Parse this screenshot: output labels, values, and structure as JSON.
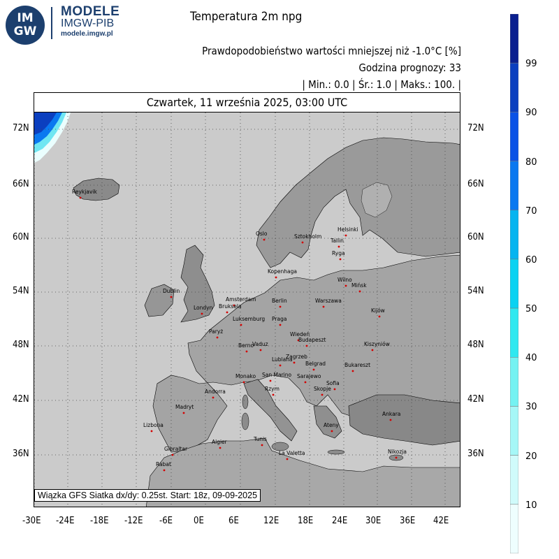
{
  "header": {
    "logo_text_line1": "IM",
    "logo_text_line2": "GW",
    "brand_name": "MODELE",
    "brand_org": "IMGW-PIB",
    "brand_url": "modele.imgw.pl",
    "title": "Temperatura 2m npg",
    "subtitle": "Prawdopodobieństwo wartości mniejszej niż -1.0°C [%]",
    "forecast_hour": "Godzina prognozy: 33",
    "stats": "| Min.:     0.0 | Śr.:      1.0 | Maks.:     100. |",
    "date": "Czwartek, 11 września 2025, 03:00 UTC"
  },
  "footer": {
    "run_info": "Wiązka GFS Siatka dx/dy: 0.25st. Start: 18z, 09-09-2025"
  },
  "axes": {
    "x_ticks": [
      "-30E",
      "-24E",
      "-18E",
      "-12E",
      "-6E",
      "0E",
      "6E",
      "12E",
      "18E",
      "24E",
      "30E",
      "36E",
      "42E"
    ],
    "y_ticks": [
      "72N",
      "66N",
      "60N",
      "54N",
      "48N",
      "42N",
      "36N"
    ]
  },
  "colorbar": {
    "labels": [
      "99",
      "90",
      "80",
      "70",
      "60",
      "50",
      "40",
      "30",
      "20",
      "10"
    ],
    "colors": [
      "#0a1f8f",
      "#0b3fbf",
      "#0a52e6",
      "#0a78f0",
      "#06b4f0",
      "#0ad2f2",
      "#2fe8f0",
      "#74f2f2",
      "#a6f7f7",
      "#d0fbfb",
      "#eefefe"
    ]
  },
  "cities": [
    {
      "name": "Reykjavik"
    },
    {
      "name": "Oslo"
    },
    {
      "name": "Sztokholm"
    },
    {
      "name": "Helsinki"
    },
    {
      "name": "Tallin"
    },
    {
      "name": "Ryga"
    },
    {
      "name": "Kopenhaga"
    },
    {
      "name": "Wilno"
    },
    {
      "name": "Mińsk"
    },
    {
      "name": "Dublin"
    },
    {
      "name": "Amsterdam"
    },
    {
      "name": "Berlin"
    },
    {
      "name": "Warszawa"
    },
    {
      "name": "Londyn"
    },
    {
      "name": "Bruksela"
    },
    {
      "name": "Luksemburg"
    },
    {
      "name": "Praga"
    },
    {
      "name": "Kijów"
    },
    {
      "name": "Paryż"
    },
    {
      "name": "Wiedeń"
    },
    {
      "name": "Berno"
    },
    {
      "name": "Vaduz"
    },
    {
      "name": "Budapeszt"
    },
    {
      "name": "Kiszyniów"
    },
    {
      "name": "Lublana"
    },
    {
      "name": "Zagrzeb"
    },
    {
      "name": "Belgrad"
    },
    {
      "name": "Bukareszt"
    },
    {
      "name": "Monako"
    },
    {
      "name": "San Marino"
    },
    {
      "name": "Sarajewo"
    },
    {
      "name": "Andorra"
    },
    {
      "name": "Rzym"
    },
    {
      "name": "Skopje"
    },
    {
      "name": "Sofia"
    },
    {
      "name": "Madryt"
    },
    {
      "name": "Ankara"
    },
    {
      "name": "Lizbona"
    },
    {
      "name": "Ateny"
    },
    {
      "name": "Gibraltar"
    },
    {
      "name": "Algier"
    },
    {
      "name": "Tunis"
    },
    {
      "name": "La Valetta"
    },
    {
      "name": "Nikozja"
    },
    {
      "name": "Rabat"
    }
  ]
}
